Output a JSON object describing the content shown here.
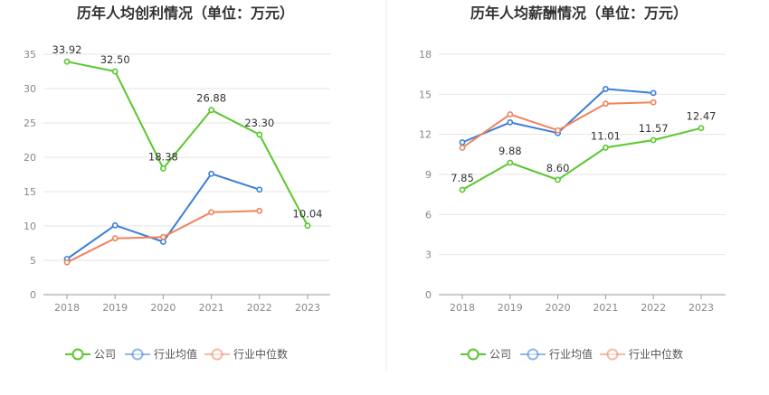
{
  "chart_data": [
    {
      "type": "line",
      "title": "历年人均创利情况（单位：万元）",
      "xlabel": "",
      "ylabel": "",
      "categories": [
        "2018",
        "2019",
        "2020",
        "2021",
        "2022",
        "2023"
      ],
      "ylim": [
        0,
        35
      ],
      "yticks": [
        0,
        5,
        10,
        15,
        20,
        25,
        30,
        35
      ],
      "grid": true,
      "legend_position": "bottom",
      "series": [
        {
          "name": "公司",
          "color": "#5ac72e",
          "values": [
            33.92,
            32.5,
            18.38,
            26.88,
            23.3,
            10.04
          ],
          "labels": [
            "33.92",
            "32.50",
            "18.38",
            "26.88",
            "23.30",
            "10.04"
          ]
        },
        {
          "name": "行业均值",
          "color": "#3b7fd9",
          "values": [
            5.2,
            10.1,
            7.7,
            17.6,
            15.3,
            null
          ]
        },
        {
          "name": "行业中位数",
          "color": "#f0845c",
          "values": [
            4.7,
            8.2,
            8.4,
            12.0,
            12.2,
            null
          ]
        }
      ]
    },
    {
      "type": "line",
      "title": "历年人均薪酬情况（单位：万元）",
      "xlabel": "",
      "ylabel": "",
      "categories": [
        "2018",
        "2019",
        "2020",
        "2021",
        "2022",
        "2023"
      ],
      "ylim": [
        0,
        18
      ],
      "yticks": [
        0,
        3,
        6,
        9,
        12,
        15,
        18
      ],
      "grid": true,
      "legend_position": "bottom",
      "series": [
        {
          "name": "公司",
          "color": "#5ac72e",
          "values": [
            7.85,
            9.88,
            8.6,
            11.01,
            11.57,
            12.47
          ],
          "labels": [
            "7.85",
            "9.88",
            "8.60",
            "11.01",
            "11.57",
            "12.47"
          ]
        },
        {
          "name": "行业均值",
          "color": "#3b7fd9",
          "values": [
            11.4,
            12.9,
            12.1,
            15.4,
            15.1,
            null
          ]
        },
        {
          "name": "行业中位数",
          "color": "#f0845c",
          "values": [
            11.0,
            13.5,
            12.3,
            14.3,
            14.4,
            null
          ]
        }
      ]
    }
  ]
}
